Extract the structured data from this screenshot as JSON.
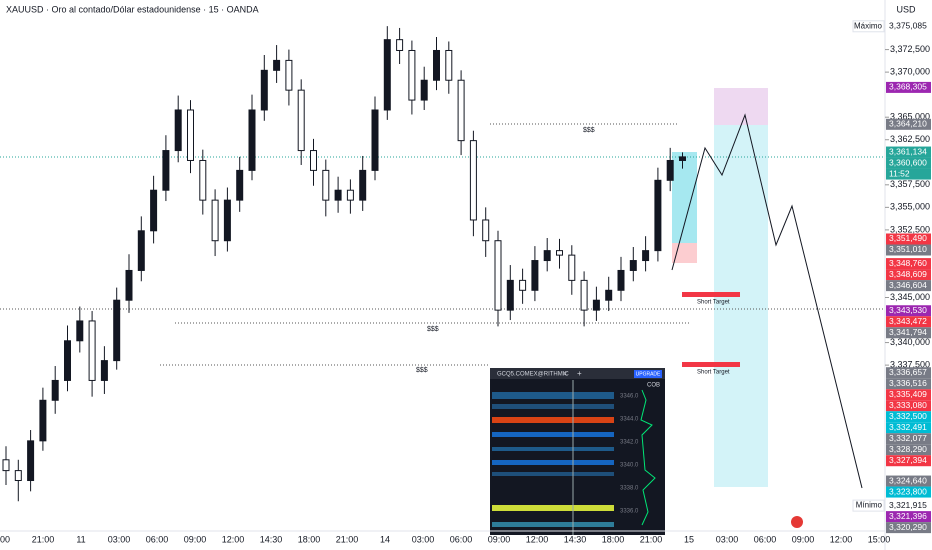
{
  "chart_data": {
    "type": "candlestick",
    "title": "XAUUSD · Oro al contado/Dólar estadounidense · 15 · OANDA",
    "currency": "USD",
    "categories": [
      "00",
      "21:00",
      "11",
      "03:00",
      "06:00",
      "09:00",
      "12:00",
      "14:30",
      "18:00",
      "21:00",
      "14",
      "03:00",
      "06:00",
      "09:00",
      "12:00",
      "14:30",
      "18:00",
      "21:00",
      "15",
      "03:00",
      "06:00",
      "09:00",
      "12:00",
      "15:00"
    ],
    "open": [
      3327.0,
      3325.8,
      3324.7,
      3329.1,
      3333.6,
      3335.8,
      3340.2,
      3342.4,
      3335.8,
      3338.0,
      3344.7,
      3348.0,
      3352.4,
      3356.9,
      3361.3,
      3365.8,
      3360.2,
      3355.8,
      3351.3,
      3355.8,
      3359.1,
      3365.8,
      3370.2,
      3371.3,
      3368.0,
      3361.3,
      3359.1,
      3355.8,
      3356.9,
      3355.8,
      3359.1,
      3365.8,
      3373.6,
      3372.4,
      3366.9,
      3369.1,
      3372.4,
      3369.1,
      3362.4,
      3353.6,
      3351.3,
      3343.6,
      3346.9,
      3345.8,
      3349.1,
      3350.2,
      3349.7,
      3346.9,
      3343.6,
      3344.7,
      3345.8,
      3348.0,
      3349.1,
      3350.2,
      3358.0,
      3360.2
    ],
    "high": [
      3328.5,
      3327.0,
      3330.3,
      3335.0,
      3337.4,
      3341.9,
      3344.0,
      3343.5,
      3339.6,
      3346.1,
      3349.8,
      3354.0,
      3358.5,
      3363.0,
      3367.4,
      3366.9,
      3361.4,
      3357.0,
      3357.2,
      3360.6,
      3367.5,
      3371.9,
      3373.0,
      3372.5,
      3369.2,
      3362.6,
      3360.3,
      3358.4,
      3358.1,
      3360.7,
      3367.3,
      3375.1,
      3374.9,
      3373.5,
      3370.6,
      3373.9,
      3373.4,
      3370.2,
      3363.5,
      3355.0,
      3352.4,
      3348.6,
      3348.2,
      3350.7,
      3351.6,
      3351.5,
      3350.8,
      3347.9,
      3346.2,
      3347.3,
      3349.5,
      3350.6,
      3351.8,
      3359.4,
      3361.6,
      3361.1
    ],
    "low": [
      3324.2,
      3322.4,
      3323.5,
      3328.0,
      3332.1,
      3334.6,
      3338.9,
      3334.0,
      3334.3,
      3337.0,
      3343.3,
      3346.8,
      3351.0,
      3355.7,
      3360.0,
      3358.8,
      3354.2,
      3349.6,
      3350.1,
      3354.5,
      3358.0,
      3364.6,
      3368.8,
      3366.3,
      3359.7,
      3357.4,
      3354.0,
      3354.4,
      3354.3,
      3354.6,
      3358.0,
      3364.7,
      3370.9,
      3365.3,
      3365.8,
      3368.0,
      3367.6,
      3360.8,
      3351.8,
      3349.5,
      3341.8,
      3342.5,
      3344.3,
      3344.6,
      3347.9,
      3348.2,
      3345.3,
      3341.8,
      3342.4,
      3343.5,
      3344.6,
      3346.8,
      3347.9,
      3349.0,
      3356.8,
      3359.3
    ],
    "close": [
      3325.8,
      3324.7,
      3329.1,
      3333.6,
      3335.8,
      3340.2,
      3342.4,
      3335.8,
      3338.0,
      3344.7,
      3348.0,
      3352.4,
      3356.9,
      3361.3,
      3365.8,
      3360.2,
      3355.8,
      3351.3,
      3355.8,
      3359.1,
      3365.8,
      3370.2,
      3371.3,
      3368.0,
      3361.3,
      3359.1,
      3355.8,
      3356.9,
      3355.8,
      3359.1,
      3365.8,
      3373.6,
      3372.4,
      3366.9,
      3369.1,
      3372.4,
      3369.1,
      3362.4,
      3353.6,
      3351.3,
      3343.6,
      3346.9,
      3345.8,
      3349.1,
      3350.2,
      3349.7,
      3346.9,
      3343.6,
      3344.7,
      3345.8,
      3348.0,
      3349.1,
      3350.2,
      3358.0,
      3360.2,
      3360.6
    ],
    "up_color": "#131722",
    "down_color": "#ffffff",
    "ylim": [
      3319.1,
      3378
    ],
    "yticks": [
      {
        "value": 3372.5,
        "label": "3,372,500"
      },
      {
        "value": 3370,
        "label": "3,370,000"
      },
      {
        "value": 3365,
        "label": "3,365,000"
      },
      {
        "value": 3362.5,
        "label": "3,362,500"
      },
      {
        "value": 3357.5,
        "label": "3,357,500"
      },
      {
        "value": 3355,
        "label": "3,355,000"
      },
      {
        "value": 3352.5,
        "label": "3,352,500"
      },
      {
        "value": 3345,
        "label": "3,345,000"
      },
      {
        "value": 3340,
        "label": "3,340,000"
      },
      {
        "value": 3337.5,
        "label": "3,337,500"
      }
    ],
    "price_labels": [
      {
        "value": 3375.085,
        "label": "3,375,085",
        "color": "#ffffff",
        "tag": "Máximo"
      },
      {
        "value": 3368.305,
        "label": "3,368,305",
        "color": "#9c27b0"
      },
      {
        "value": 3364.21,
        "label": "3,364,210",
        "color": "#787b86"
      },
      {
        "value": 3361.134,
        "label": "3,361,134",
        "color": "#26a69a"
      },
      {
        "value": 3360.6,
        "label": "3,360,600",
        "color": "#26a69a",
        "countdown": "11:52"
      },
      {
        "value": 3351.49,
        "label": "3,351,490",
        "color": "#f23645"
      },
      {
        "value": 3351.01,
        "label": "3,351,010",
        "color": "#787b86"
      },
      {
        "value": 3348.76,
        "label": "3,348,760",
        "color": "#f23645"
      },
      {
        "value": 3348.609,
        "label": "3,348,609",
        "color": "#f23645"
      },
      {
        "value": 3346.604,
        "label": "3,346,604",
        "color": "#787b86"
      },
      {
        "value": 3343.53,
        "label": "3,343,530",
        "color": "#9c27b0"
      },
      {
        "value": 3343.472,
        "label": "3,343,472",
        "color": "#f23645"
      },
      {
        "value": 3341.794,
        "label": "3,341,794",
        "color": "#787b86"
      },
      {
        "value": 3336.657,
        "label": "3,336,657",
        "color": "#787b86"
      },
      {
        "value": 3336.516,
        "label": "3,336,516",
        "color": "#787b86"
      },
      {
        "value": 3335.409,
        "label": "3,335,409",
        "color": "#f23645"
      },
      {
        "value": 3333.08,
        "label": "3,333,080",
        "color": "#f23645"
      },
      {
        "value": 3332.5,
        "label": "3,332,500",
        "color": "#00bcd4"
      },
      {
        "value": 3332.491,
        "label": "3,332,491",
        "color": "#00bcd4"
      },
      {
        "value": 3332.077,
        "label": "3,332,077",
        "color": "#787b86"
      },
      {
        "value": 3328.29,
        "label": "3,328,290",
        "color": "#787b86"
      },
      {
        "value": 3327.394,
        "label": "3,327,394",
        "color": "#f23645"
      },
      {
        "value": 3324.64,
        "label": "3,324,640",
        "color": "#787b86"
      },
      {
        "value": 3323.8,
        "label": "3,323,800",
        "color": "#00bcd4"
      },
      {
        "value": 3321.915,
        "label": "3,321,915",
        "color": "#ffffff",
        "tag": "Mínimo"
      },
      {
        "value": 3321.396,
        "label": "3,321,396",
        "color": "#9c27b0"
      },
      {
        "value": 3320.29,
        "label": "3,320,290",
        "color": "#787b86"
      }
    ],
    "annotations": {
      "liquidity": "$$$",
      "target": "Short Target"
    }
  },
  "widget": {
    "title": "GCQ5.COMEX@RITHMIC",
    "close": "×",
    "add": "+",
    "button": "UPGRADE",
    "tab": "COB",
    "prices": [
      "3346.0",
      "3344.0",
      "3342.0",
      "3340.0",
      "3338.0",
      "3336.0"
    ]
  }
}
